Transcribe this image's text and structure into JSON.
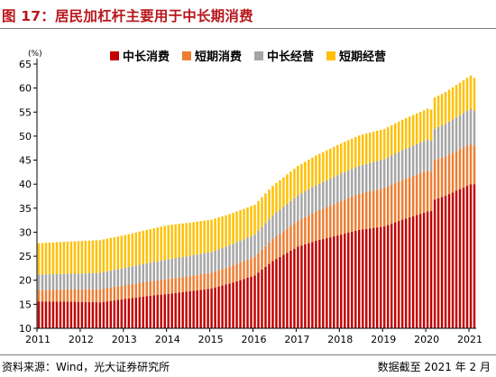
{
  "figure_title": "图 17：居民加杠杆主要用于中长期消费",
  "source_note": "资料来源：Wind，光大证券研究所",
  "date_note": "数据截至 2021 年 2 月",
  "chart_data": {
    "type": "bar",
    "stacked": true,
    "unit_label": "(%)",
    "ylim": [
      10,
      65
    ],
    "yticks": [
      10,
      15,
      20,
      25,
      30,
      35,
      40,
      45,
      50,
      55,
      60,
      65
    ],
    "x_start": "2011-01",
    "x_end": "2021-02",
    "xticks": [
      "2011",
      "2012",
      "2013",
      "2014",
      "2015",
      "2016",
      "2017",
      "2018",
      "2019",
      "2020",
      "2021"
    ],
    "legend_position": "top",
    "grid": false,
    "series": [
      {
        "name": "中长消费",
        "color": "#c00000",
        "anchors": [
          [
            "2011-01",
            15.6
          ],
          [
            "2012-01",
            15.5
          ],
          [
            "2012-06",
            15.4
          ],
          [
            "2013-06",
            16.6
          ],
          [
            "2014-06",
            17.6
          ],
          [
            "2015-01",
            18.3
          ],
          [
            "2015-06",
            19.3
          ],
          [
            "2016-01",
            21.0
          ],
          [
            "2016-06",
            24.0
          ],
          [
            "2017-01",
            27.0
          ],
          [
            "2017-06",
            28.2
          ],
          [
            "2018-01",
            29.5
          ],
          [
            "2018-06",
            30.5
          ],
          [
            "2019-01",
            31.2
          ],
          [
            "2019-06",
            32.6
          ],
          [
            "2020-01",
            34.3
          ],
          [
            "2020-02",
            34.4
          ],
          [
            "2020-03",
            36.8
          ],
          [
            "2020-06",
            37.6
          ],
          [
            "2021-01",
            40.0
          ],
          [
            "2021-02",
            40.0
          ]
        ]
      },
      {
        "name": "短期消费",
        "color": "#ed7d31",
        "anchors": [
          [
            "2011-01",
            2.4
          ],
          [
            "2012-01",
            2.6
          ],
          [
            "2013-01",
            2.9
          ],
          [
            "2014-01",
            3.1
          ],
          [
            "2015-01",
            3.3
          ],
          [
            "2016-01",
            3.9
          ],
          [
            "2016-06",
            4.6
          ],
          [
            "2017-01",
            5.4
          ],
          [
            "2017-06",
            6.1
          ],
          [
            "2018-01",
            7.0
          ],
          [
            "2018-06",
            7.5
          ],
          [
            "2019-01",
            8.0
          ],
          [
            "2019-06",
            8.3
          ],
          [
            "2020-01",
            8.6
          ],
          [
            "2020-02",
            8.2
          ],
          [
            "2020-06",
            8.2
          ],
          [
            "2021-01",
            8.4
          ],
          [
            "2021-02",
            8.0
          ]
        ]
      },
      {
        "name": "中长经营",
        "color": "#a5a5a5",
        "anchors": [
          [
            "2011-01",
            3.2
          ],
          [
            "2012-01",
            3.3
          ],
          [
            "2013-01",
            3.6
          ],
          [
            "2014-01",
            4.1
          ],
          [
            "2015-01",
            4.3
          ],
          [
            "2016-01",
            4.6
          ],
          [
            "2017-01",
            5.3
          ],
          [
            "2018-01",
            5.7
          ],
          [
            "2019-01",
            6.0
          ],
          [
            "2020-01",
            6.4
          ],
          [
            "2021-01",
            7.3
          ],
          [
            "2021-02",
            7.3
          ]
        ]
      },
      {
        "name": "短期经营",
        "color": "#ffc000",
        "anchors": [
          [
            "2011-01",
            6.5
          ],
          [
            "2012-01",
            6.8
          ],
          [
            "2013-01",
            6.8
          ],
          [
            "2014-01",
            7.1
          ],
          [
            "2015-01",
            6.7
          ],
          [
            "2016-01",
            6.2
          ],
          [
            "2017-01",
            6.1
          ],
          [
            "2018-01",
            6.3
          ],
          [
            "2019-01",
            6.3
          ],
          [
            "2020-01",
            6.4
          ],
          [
            "2021-01",
            6.9
          ],
          [
            "2021-02",
            6.8
          ]
        ]
      }
    ]
  }
}
